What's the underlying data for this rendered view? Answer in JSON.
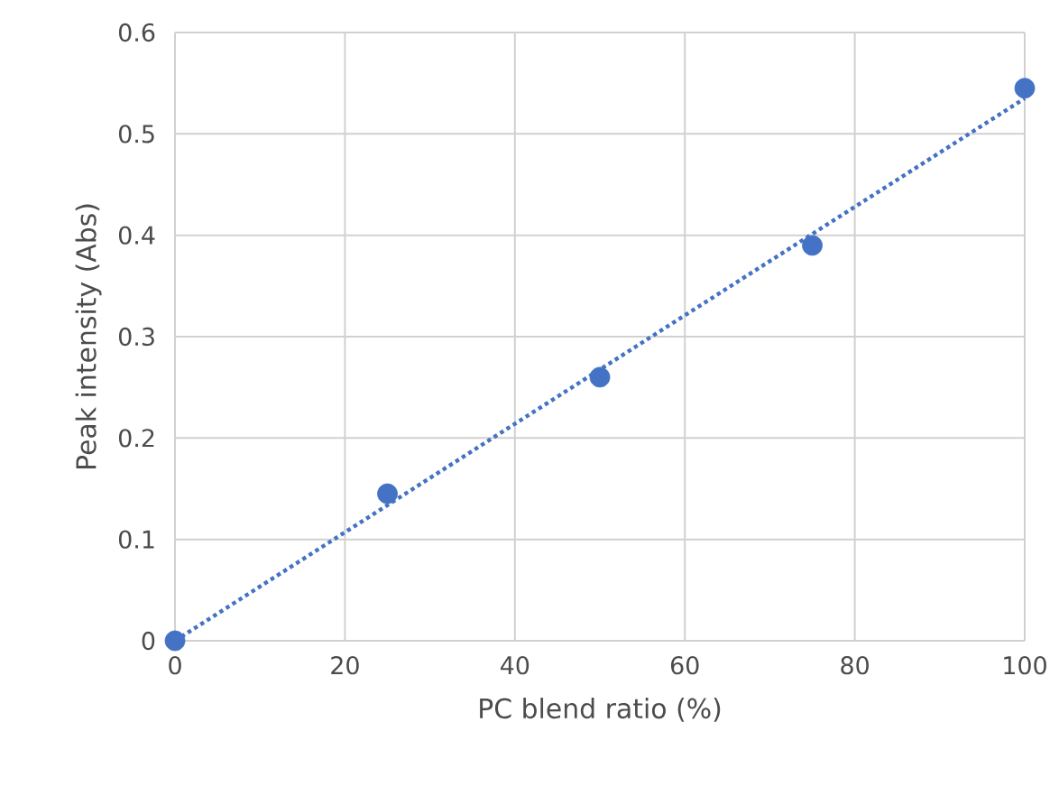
{
  "chart_data": {
    "type": "scatter",
    "xlabel": "PC blend ratio (%)",
    "ylabel": "Peak intensity (Abs)",
    "xlim": [
      0,
      100
    ],
    "ylim": [
      0,
      0.6
    ],
    "xticks": [
      0,
      20,
      40,
      60,
      80,
      100
    ],
    "yticks": [
      0,
      0.1,
      0.2,
      0.3,
      0.4,
      0.5,
      0.6
    ],
    "grid": true,
    "marker": "circle",
    "series": [
      {
        "color": "#4472c4",
        "x": [
          0,
          25,
          50,
          75,
          100
        ],
        "values": [
          0,
          0.145,
          0.26,
          0.39,
          0.545
        ]
      },
      {
        "type": "line",
        "color": "#4472c4",
        "line_style": "dotted",
        "marker": "none",
        "x": [
          0,
          100
        ],
        "values": [
          0,
          0.535
        ]
      }
    ]
  }
}
